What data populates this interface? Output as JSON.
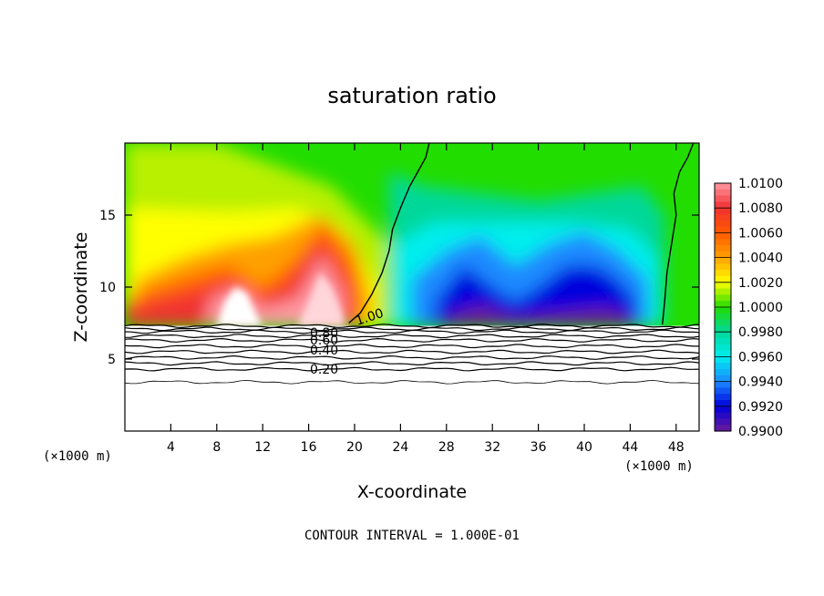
{
  "chart_data": {
    "type": "heatmap",
    "title": "saturation ratio",
    "xlabel": "X-coordinate",
    "ylabel": "Z-coordinate",
    "x_unit_label_left": "(×1000 m)",
    "x_unit_label_right": "(×1000 m)",
    "xlim": [
      0,
      50
    ],
    "ylim": [
      0,
      20
    ],
    "x_ticks": [
      4,
      8,
      12,
      16,
      20,
      24,
      28,
      32,
      36,
      40,
      44,
      48
    ],
    "x_tick_labels": [
      "4",
      "8",
      "12",
      "16",
      "20",
      "24",
      "28",
      "32",
      "36",
      "40",
      "44",
      "48"
    ],
    "y_ticks": [
      5,
      10,
      15
    ],
    "y_tick_labels": [
      "5",
      "10",
      "15"
    ],
    "footer": "CONTOUR INTERVAL = 1.000E-01",
    "colorbar": {
      "min": 0.99,
      "max": 1.01,
      "labels": [
        "1.0100",
        "1.0080",
        "1.0060",
        "1.0040",
        "1.0020",
        "1.0000",
        "0.9980",
        "0.9960",
        "0.9940",
        "0.9920",
        "0.9900"
      ]
    },
    "contour_levels": [
      {
        "value": 1.0,
        "label": "1.00",
        "z": 7.4
      },
      {
        "value": 0.8,
        "label": "0.80",
        "z": 6.8
      },
      {
        "value": 0.6,
        "label": "0.60",
        "z": 6.0
      },
      {
        "value": 0.4,
        "label": "0.40",
        "z": 5.2
      },
      {
        "value": 0.2,
        "label": "0.20",
        "z": 4.3
      }
    ],
    "description_regions": {
      "cloud_base_z": 7.3,
      "supersaturated_x_range": [
        0,
        22
      ],
      "subsaturated_x_range": [
        22,
        47
      ]
    }
  },
  "colors": {
    "c1010": "#ff9aa4",
    "c1008": "#f03030",
    "c1006": "#ff5a00",
    "c1004": "#ffa000",
    "c1002": "#ffff00",
    "c1000": "#22dd00",
    "c0998": "#00d89a",
    "c0996": "#00eeee",
    "c0994": "#1a8aff",
    "c0992": "#0000dd",
    "c0990": "#6a1a9a"
  }
}
